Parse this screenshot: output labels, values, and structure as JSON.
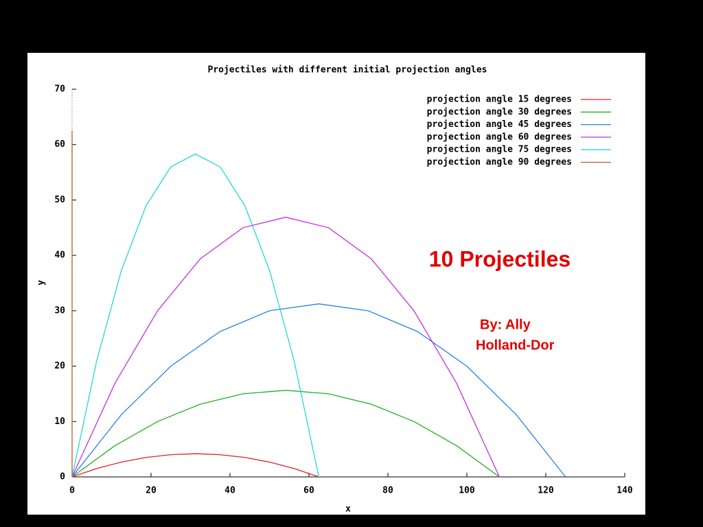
{
  "chart_data": {
    "type": "line",
    "title": "Projectiles with different initial projection angles",
    "x_label": "x",
    "y_label": "y",
    "xlim": [
      0,
      140
    ],
    "xticks": [
      0,
      20,
      40,
      60,
      80,
      100,
      120,
      140
    ],
    "ylim": [
      0,
      70
    ],
    "yticks": [
      0,
      10,
      20,
      30,
      40,
      50,
      60,
      70
    ],
    "legend": "top-right",
    "series": [
      {
        "name": "projection angle 15 degrees",
        "color": "#e02020",
        "x": [
          0,
          6.25,
          12.5,
          18.75,
          25,
          31.25,
          37.5,
          43.75,
          50,
          56.25,
          62.5
        ],
        "values": [
          0,
          1.51,
          2.68,
          3.52,
          4.02,
          4.19,
          4.02,
          3.52,
          2.68,
          1.51,
          0
        ]
      },
      {
        "name": "projection angle 30 degrees",
        "color": "#20b020",
        "x": [
          0,
          10.83,
          21.65,
          32.48,
          43.3,
          54.13,
          64.95,
          75.78,
          86.6,
          97.43,
          108.25
        ],
        "values": [
          0,
          5.63,
          10,
          13.13,
          15,
          15.63,
          15,
          13.13,
          10,
          5.63,
          0
        ]
      },
      {
        "name": "projection angle 45 degrees",
        "color": "#2a80e0",
        "x": [
          0,
          12.5,
          25,
          37.5,
          50,
          62.5,
          75,
          87.5,
          100,
          112.5,
          125
        ],
        "values": [
          0,
          11.25,
          20,
          26.25,
          30,
          31.25,
          30,
          26.25,
          20,
          11.25,
          0
        ]
      },
      {
        "name": "projection angle 60 degrees",
        "color": "#c030e0",
        "x": [
          0,
          10.83,
          21.65,
          32.48,
          43.3,
          54.13,
          64.95,
          75.78,
          86.6,
          97.43,
          108.25
        ],
        "values": [
          0,
          16.88,
          30,
          39.38,
          45,
          46.88,
          45,
          39.38,
          30,
          16.88,
          0
        ]
      },
      {
        "name": "projection angle 75 degrees",
        "color": "#20d8d8",
        "x": [
          0,
          6.25,
          12.5,
          18.75,
          25,
          31.25,
          37.5,
          43.75,
          50,
          56.25,
          62.5
        ],
        "values": [
          0,
          20.99,
          37.32,
          48.98,
          55.98,
          58.31,
          55.98,
          48.98,
          37.32,
          20.99,
          0
        ]
      },
      {
        "name": "projection angle 90 degrees",
        "color": "#c05a1a",
        "x": [
          0,
          0
        ],
        "values": [
          0,
          62.5
        ]
      }
    ]
  },
  "slide": {
    "heading": "10 Projectiles",
    "byline": [
      "By: Ally",
      "Holland-Dor"
    ]
  }
}
